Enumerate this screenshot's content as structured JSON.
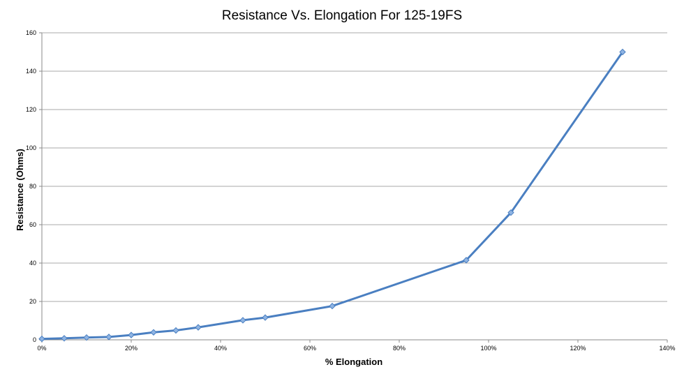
{
  "chart_data": {
    "type": "line",
    "title": "Resistance Vs. Elongation For 125-19FS",
    "xlabel": "% Elongation",
    "ylabel": "Resistance (Ohms)",
    "xlim": [
      0,
      140
    ],
    "ylim": [
      0,
      160
    ],
    "x_ticks": [
      {
        "value": 0,
        "label": "0%"
      },
      {
        "value": 20,
        "label": "20%"
      },
      {
        "value": 40,
        "label": "40%"
      },
      {
        "value": 60,
        "label": "60%"
      },
      {
        "value": 80,
        "label": "80%"
      },
      {
        "value": 100,
        "label": "100%"
      },
      {
        "value": 120,
        "label": "120%"
      },
      {
        "value": 140,
        "label": "140%"
      }
    ],
    "y_ticks": [
      {
        "value": 0,
        "label": "0"
      },
      {
        "value": 20,
        "label": "20"
      },
      {
        "value": 40,
        "label": "40"
      },
      {
        "value": 60,
        "label": "60"
      },
      {
        "value": 80,
        "label": "80"
      },
      {
        "value": 100,
        "label": "100"
      },
      {
        "value": 120,
        "label": "120"
      },
      {
        "value": 140,
        "label": "140"
      },
      {
        "value": 160,
        "label": "160"
      }
    ],
    "grid": "horizontal",
    "legend": "none",
    "series": [
      {
        "color": "#4a7fc1",
        "marker_color": "#8fb4e3",
        "x": [
          0,
          5,
          10,
          15,
          20,
          25,
          30,
          35,
          45,
          50,
          65,
          95,
          105,
          130
        ],
        "y": [
          0.5,
          0.8,
          1.2,
          1.5,
          2.5,
          3.9,
          4.9,
          6.5,
          10.2,
          11.6,
          17.6,
          41.5,
          66.3,
          150
        ]
      }
    ]
  }
}
